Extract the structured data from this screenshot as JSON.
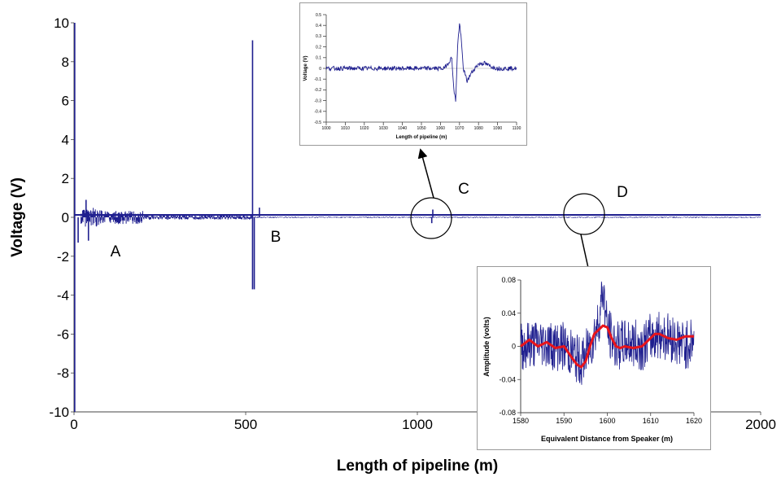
{
  "chart_data": [
    {
      "type": "line",
      "xlabel": "Length of pipeline (m)",
      "ylabel": "Voltage (V)",
      "xlim": [
        0,
        2000
      ],
      "ylim": [
        -10,
        10
      ],
      "xticks": [
        "0",
        "500",
        "1000",
        "1500",
        "2000"
      ],
      "yticks": [
        "-10",
        "-8",
        "-6",
        "-4",
        "-2",
        "0",
        "2",
        "4",
        "6",
        "8",
        "10"
      ],
      "series_color": "#1f1f8f",
      "annotations": [
        "A",
        "B",
        "C",
        "D"
      ],
      "spikes": [
        {
          "x": 2,
          "y": 10
        },
        {
          "x": 2,
          "y": -10
        },
        {
          "x": 12,
          "y": -1.3
        },
        {
          "x": 35,
          "y": 0.9
        },
        {
          "x": 42,
          "y": -1.2
        },
        {
          "x": 520,
          "y": 9.1
        },
        {
          "x": 520,
          "y": -3.7
        },
        {
          "x": 525,
          "y": -3.7
        },
        {
          "x": 540,
          "y": 0.5
        },
        {
          "x": 1045,
          "y": 0.4
        },
        {
          "x": 1042,
          "y": -0.3
        }
      ],
      "noise_regions": [
        {
          "x_start": 20,
          "x_end": 80,
          "amplitude": 0.5
        },
        {
          "x_start": 80,
          "x_end": 200,
          "amplitude": 0.35
        },
        {
          "x_start": 200,
          "x_end": 520,
          "amplitude": 0.12
        },
        {
          "x_start": 520,
          "x_end": 2000,
          "amplitude": 0.03
        }
      ]
    },
    {
      "type": "line",
      "xlabel": "Length of pipeline (m)",
      "ylabel": "Voltage (V)",
      "xlim": [
        1000,
        1100
      ],
      "ylim": [
        -0.5,
        0.5
      ],
      "xticks": [
        "1000",
        "1010",
        "1020",
        "1030",
        "1040",
        "1050",
        "1060",
        "1070",
        "1080",
        "1090",
        "1100"
      ],
      "yticks": [
        "-0.5",
        "-0.4",
        "-0.3",
        "-0.2",
        "-0.1",
        "0",
        "0.1",
        "0.2",
        "0.3",
        "0.4",
        "0.5"
      ],
      "series_color": "#1f1f8f",
      "x": [
        1000,
        1062,
        1064,
        1066,
        1067,
        1068,
        1069,
        1070,
        1071,
        1072,
        1074,
        1076,
        1078,
        1080,
        1083,
        1086,
        1090,
        1100
      ],
      "y": [
        0.0,
        0.0,
        0.05,
        0.1,
        -0.2,
        -0.3,
        0.2,
        0.42,
        0.25,
        0.0,
        -0.12,
        -0.05,
        0.0,
        0.04,
        0.05,
        0.02,
        0.0,
        0.0
      ]
    },
    {
      "type": "line",
      "xlabel": "Equivalent Distance from Speaker (m)",
      "ylabel": "Amplitude (volts)",
      "xlim": [
        1580,
        1620
      ],
      "ylim": [
        -0.08,
        0.08
      ],
      "xticks": [
        "1580",
        "1590",
        "1600",
        "1610",
        "1620"
      ],
      "yticks": [
        "0.08",
        "0.04",
        "0",
        "-0.04",
        "-0.08"
      ],
      "series": [
        {
          "color": "#1f1f8f",
          "x": [
            1580,
            1585,
            1588,
            1590,
            1592,
            1594,
            1596,
            1598,
            1599,
            1600,
            1602,
            1605,
            1608,
            1610,
            1612,
            1615,
            1618,
            1620
          ],
          "y": [
            0.0,
            0.005,
            0.0,
            0.0,
            -0.01,
            -0.02,
            0.0,
            0.03,
            0.07,
            0.02,
            0.0,
            0.005,
            0.0,
            0.01,
            0.015,
            0.01,
            0.0,
            0.01
          ],
          "noise_amplitude": 0.03
        },
        {
          "color": "#e8141b",
          "x": [
            1580,
            1582,
            1584,
            1586,
            1588,
            1590,
            1592,
            1593,
            1594,
            1595,
            1596,
            1597,
            1598,
            1599,
            1600,
            1601,
            1602,
            1603,
            1604,
            1606,
            1608,
            1610,
            1611,
            1612,
            1614,
            1616,
            1618,
            1620
          ],
          "y": [
            0.0,
            0.008,
            0.0,
            0.005,
            -0.002,
            0.0,
            -0.015,
            -0.022,
            -0.025,
            -0.018,
            0.0,
            0.015,
            0.02,
            0.025,
            0.023,
            0.01,
            0.0,
            -0.002,
            0.0,
            -0.002,
            0.0,
            0.01,
            0.015,
            0.015,
            0.01,
            0.008,
            0.012,
            0.012
          ]
        }
      ]
    }
  ]
}
